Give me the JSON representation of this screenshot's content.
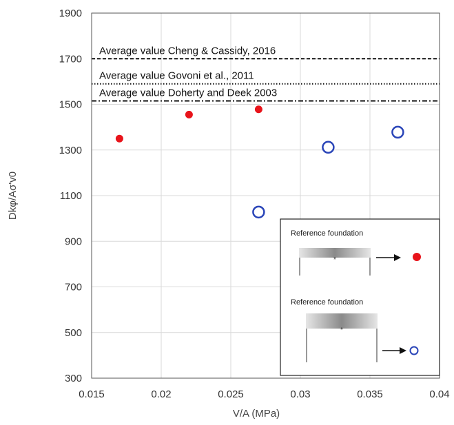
{
  "chart_data": {
    "type": "scatter",
    "xlabel": "V/A (MPa)",
    "ylabel": "Dkφ/Aσ'v0",
    "xlim": [
      0.015,
      0.04
    ],
    "ylim": [
      300,
      1900
    ],
    "x_ticks": [
      "0.015",
      "0.02",
      "0.025",
      "0.03",
      "0.035",
      "0.04"
    ],
    "y_ticks": [
      "300",
      "500",
      "700",
      "900",
      "1100",
      "1300",
      "1500",
      "1700",
      "1900"
    ],
    "grid": true,
    "series": [
      {
        "marker": "filled-circle",
        "color": "#e8141b",
        "points": [
          {
            "x": 0.017,
            "y": 1350
          },
          {
            "x": 0.022,
            "y": 1455
          },
          {
            "x": 0.027,
            "y": 1478
          }
        ]
      },
      {
        "marker": "open-circle",
        "color": "#2a45b8",
        "points": [
          {
            "x": 0.027,
            "y": 1028
          },
          {
            "x": 0.032,
            "y": 1312
          },
          {
            "x": 0.037,
            "y": 1378
          }
        ]
      }
    ],
    "reference_lines": [
      {
        "label": "Average value Cheng & Cassidy, 2016",
        "y": 1700,
        "style": "dashed"
      },
      {
        "label": "Average value Govoni et al., 2011",
        "y": 1590,
        "style": "dotted"
      },
      {
        "label": "Average value Doherty and Deek 2003",
        "y": 1515,
        "style": "dashdot"
      }
    ],
    "legend": {
      "placement": "bottom-right",
      "entries": [
        {
          "label": "Reference foundation",
          "marker": "filled-circle"
        },
        {
          "label": "Reference foundation",
          "marker": "open-circle"
        }
      ]
    }
  }
}
